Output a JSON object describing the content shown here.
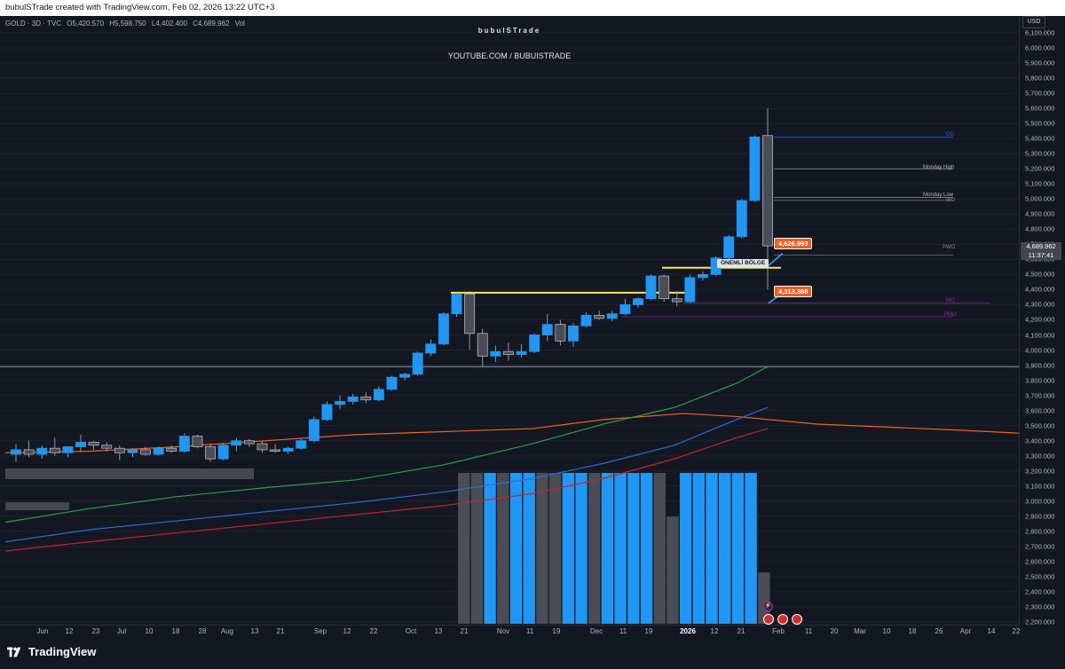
{
  "header": {
    "creator_text": "bubulSTrade created with TradingView.com, Feb 02, 2026 13:22 UTC+3"
  },
  "legend": {
    "symbol": "GOLD · 3D · TVC",
    "open": "O5,420.570",
    "high": "H5,598.750",
    "low": "L4,402.400",
    "close": "C4,689.962",
    "vol": "Vol"
  },
  "watermark": {
    "title": "bubulSTrade",
    "url": "YOUTUBE.COM / BUBUISTRADE"
  },
  "currency": "USD",
  "last_price": {
    "value": "4,689.962",
    "countdown": "11:37:41"
  },
  "annotations": {
    "upper_tag": "4,626.993",
    "lower_tag": "4,313.388",
    "zone_label": "ÖNEMLİ BÖLGE",
    "do_label": "DO",
    "monday_high": "Monday High",
    "monday_low": "Monday Low",
    "wo_label": "WO",
    "pwo_label": "PWO",
    "mo_label": "MO",
    "pmo_label": "PMO"
  },
  "price_axis": [
    "6,100.000",
    "6,000.000",
    "5,900.000",
    "5,800.000",
    "5,700.000",
    "5,600.000",
    "5,500.000",
    "5,400.000",
    "5,300.000",
    "5,200.000",
    "5,100.000",
    "5,000.000",
    "4,900.000",
    "4,800.000",
    "4,700.000",
    "4,600.000",
    "4,500.000",
    "4,400.000",
    "4,300.000",
    "4,200.000",
    "4,100.000",
    "4,000.000",
    "3,900.000",
    "3,800.000",
    "3,700.000",
    "3,600.000",
    "3,500.000",
    "3,400.000",
    "3,300.000",
    "3,200.000",
    "3,100.000",
    "3,000.000",
    "2,900.000",
    "2,800.000",
    "2,700.000",
    "2,600.000",
    "2,500.000",
    "2,400.000",
    "2,300.000",
    "2,200.000"
  ],
  "time_axis": [
    {
      "label": "Jun",
      "bold": false
    },
    {
      "label": "12",
      "bold": false
    },
    {
      "label": "23",
      "bold": false
    },
    {
      "label": "Jul",
      "bold": false
    },
    {
      "label": "10",
      "bold": false
    },
    {
      "label": "18",
      "bold": false
    },
    {
      "label": "28",
      "bold": false
    },
    {
      "label": "Aug",
      "bold": false
    },
    {
      "label": "13",
      "bold": false
    },
    {
      "label": "21",
      "bold": false
    },
    {
      "label": "Sep",
      "bold": false
    },
    {
      "label": "12",
      "bold": false
    },
    {
      "label": "22",
      "bold": false
    },
    {
      "label": "Oct",
      "bold": false
    },
    {
      "label": "13",
      "bold": false
    },
    {
      "label": "21",
      "bold": false
    },
    {
      "label": "Nov",
      "bold": false
    },
    {
      "label": "11",
      "bold": false
    },
    {
      "label": "19",
      "bold": false
    },
    {
      "label": "Dec",
      "bold": false
    },
    {
      "label": "11",
      "bold": false
    },
    {
      "label": "19",
      "bold": false
    },
    {
      "label": "2026",
      "bold": true
    },
    {
      "label": "12",
      "bold": false
    },
    {
      "label": "21",
      "bold": false
    },
    {
      "label": "Feb",
      "bold": false
    },
    {
      "label": "11",
      "bold": false
    },
    {
      "label": "20",
      "bold": false
    },
    {
      "label": "Mar",
      "bold": false
    },
    {
      "label": "10",
      "bold": false
    },
    {
      "label": "18",
      "bold": false
    },
    {
      "label": "26",
      "bold": false
    },
    {
      "label": "Apr",
      "bold": false
    },
    {
      "label": "14",
      "bold": false
    },
    {
      "label": "22",
      "bold": false
    }
  ],
  "candles": [
    {
      "o": 3310,
      "h": 3380,
      "l": 3260,
      "c": 3340
    },
    {
      "o": 3340,
      "h": 3400,
      "l": 3290,
      "c": 3310
    },
    {
      "o": 3310,
      "h": 3370,
      "l": 3280,
      "c": 3350
    },
    {
      "o": 3350,
      "h": 3420,
      "l": 3300,
      "c": 3320
    },
    {
      "o": 3320,
      "h": 3360,
      "l": 3290,
      "c": 3360
    },
    {
      "o": 3360,
      "h": 3440,
      "l": 3330,
      "c": 3390
    },
    {
      "o": 3390,
      "h": 3400,
      "l": 3340,
      "c": 3370
    },
    {
      "o": 3370,
      "h": 3390,
      "l": 3330,
      "c": 3350
    },
    {
      "o": 3350,
      "h": 3370,
      "l": 3270,
      "c": 3320
    },
    {
      "o": 3320,
      "h": 3350,
      "l": 3290,
      "c": 3340
    },
    {
      "o": 3340,
      "h": 3360,
      "l": 3300,
      "c": 3310
    },
    {
      "o": 3310,
      "h": 3360,
      "l": 3300,
      "c": 3350
    },
    {
      "o": 3350,
      "h": 3370,
      "l": 3320,
      "c": 3330
    },
    {
      "o": 3330,
      "h": 3450,
      "l": 3320,
      "c": 3430
    },
    {
      "o": 3430,
      "h": 3440,
      "l": 3350,
      "c": 3360
    },
    {
      "o": 3360,
      "h": 3380,
      "l": 3260,
      "c": 3280
    },
    {
      "o": 3280,
      "h": 3380,
      "l": 3270,
      "c": 3370
    },
    {
      "o": 3370,
      "h": 3420,
      "l": 3330,
      "c": 3400
    },
    {
      "o": 3400,
      "h": 3410,
      "l": 3360,
      "c": 3380
    },
    {
      "o": 3380,
      "h": 3400,
      "l": 3320,
      "c": 3340
    },
    {
      "o": 3340,
      "h": 3380,
      "l": 3320,
      "c": 3330
    },
    {
      "o": 3330,
      "h": 3360,
      "l": 3310,
      "c": 3350
    },
    {
      "o": 3350,
      "h": 3410,
      "l": 3340,
      "c": 3400
    },
    {
      "o": 3400,
      "h": 3560,
      "l": 3390,
      "c": 3540
    },
    {
      "o": 3540,
      "h": 3660,
      "l": 3530,
      "c": 3640
    },
    {
      "o": 3640,
      "h": 3700,
      "l": 3610,
      "c": 3660
    },
    {
      "o": 3660,
      "h": 3710,
      "l": 3640,
      "c": 3690
    },
    {
      "o": 3690,
      "h": 3720,
      "l": 3650,
      "c": 3670
    },
    {
      "o": 3670,
      "h": 3760,
      "l": 3660,
      "c": 3740
    },
    {
      "o": 3740,
      "h": 3830,
      "l": 3730,
      "c": 3820
    },
    {
      "o": 3820,
      "h": 3850,
      "l": 3800,
      "c": 3840
    },
    {
      "o": 3840,
      "h": 3990,
      "l": 3830,
      "c": 3980
    },
    {
      "o": 3980,
      "h": 4070,
      "l": 3960,
      "c": 4040
    },
    {
      "o": 4040,
      "h": 4250,
      "l": 4030,
      "c": 4240
    },
    {
      "o": 4240,
      "h": 4380,
      "l": 4220,
      "c": 4370
    },
    {
      "o": 4370,
      "h": 4390,
      "l": 4000,
      "c": 4110
    },
    {
      "o": 4110,
      "h": 4140,
      "l": 3890,
      "c": 3960
    },
    {
      "o": 3960,
      "h": 4030,
      "l": 3920,
      "c": 3990
    },
    {
      "o": 3990,
      "h": 4050,
      "l": 3930,
      "c": 3970
    },
    {
      "o": 3970,
      "h": 4040,
      "l": 3950,
      "c": 3990
    },
    {
      "o": 3990,
      "h": 4110,
      "l": 3980,
      "c": 4100
    },
    {
      "o": 4100,
      "h": 4240,
      "l": 4060,
      "c": 4170
    },
    {
      "o": 4170,
      "h": 4200,
      "l": 4030,
      "c": 4060
    },
    {
      "o": 4060,
      "h": 4180,
      "l": 4020,
      "c": 4160
    },
    {
      "o": 4160,
      "h": 4250,
      "l": 4150,
      "c": 4230
    },
    {
      "o": 4230,
      "h": 4260,
      "l": 4200,
      "c": 4210
    },
    {
      "o": 4210,
      "h": 4260,
      "l": 4190,
      "c": 4240
    },
    {
      "o": 4240,
      "h": 4340,
      "l": 4230,
      "c": 4300
    },
    {
      "o": 4300,
      "h": 4350,
      "l": 4280,
      "c": 4340
    },
    {
      "o": 4340,
      "h": 4500,
      "l": 4330,
      "c": 4490
    },
    {
      "o": 4490,
      "h": 4500,
      "l": 4320,
      "c": 4340
    },
    {
      "o": 4340,
      "h": 4390,
      "l": 4290,
      "c": 4320
    },
    {
      "o": 4320,
      "h": 4500,
      "l": 4310,
      "c": 4480
    },
    {
      "o": 4480,
      "h": 4520,
      "l": 4460,
      "c": 4500
    },
    {
      "o": 4500,
      "h": 4620,
      "l": 4490,
      "c": 4610
    },
    {
      "o": 4610,
      "h": 4760,
      "l": 4590,
      "c": 4750
    },
    {
      "o": 4750,
      "h": 5000,
      "l": 4740,
      "c": 4990
    },
    {
      "o": 4990,
      "h": 5420,
      "l": 4980,
      "c": 5410
    },
    {
      "o": 5420,
      "h": 5600,
      "l": 4400,
      "c": 4690
    }
  ],
  "volume": [
    {
      "v": 1.0,
      "up": false
    },
    {
      "v": 1.0,
      "up": false
    },
    {
      "v": 1.0,
      "up": true
    },
    {
      "v": 1.0,
      "up": false
    },
    {
      "v": 1.0,
      "up": true
    },
    {
      "v": 1.0,
      "up": true
    },
    {
      "v": 1.0,
      "up": false
    },
    {
      "v": 1.0,
      "up": false
    },
    {
      "v": 1.0,
      "up": true
    },
    {
      "v": 1.0,
      "up": true
    },
    {
      "v": 1.0,
      "up": false
    },
    {
      "v": 1.0,
      "up": true
    },
    {
      "v": 1.0,
      "up": true
    },
    {
      "v": 1.0,
      "up": true
    },
    {
      "v": 1.0,
      "up": true
    },
    {
      "v": 1.0,
      "up": false
    },
    {
      "v": 0.71,
      "up": false
    },
    {
      "v": 1.0,
      "up": true
    },
    {
      "v": 1.0,
      "up": true
    },
    {
      "v": 1.0,
      "up": true
    },
    {
      "v": 1.0,
      "up": true
    },
    {
      "v": 1.0,
      "up": true
    },
    {
      "v": 1.0,
      "up": true
    },
    {
      "v": 0.34,
      "up": false
    }
  ],
  "colors": {
    "up": "#2196f3",
    "down": "#4a4d56",
    "ema_orange": "#f0641e",
    "ma_green": "#26a541",
    "ma_blue": "#2a6fd6",
    "ma_red": "#c0262d",
    "zone_yellow": "#ffeb3b"
  }
}
